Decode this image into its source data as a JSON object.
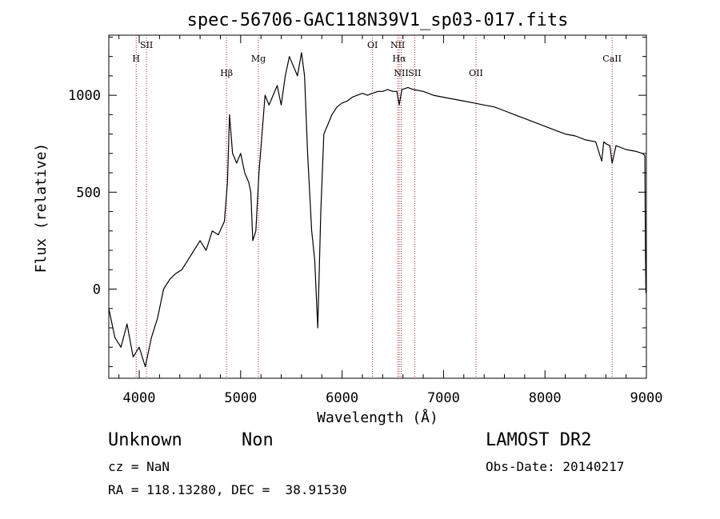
{
  "chart_data": {
    "type": "line",
    "title": "spec-56706-GAC118N39V1_sp03-017.fits",
    "xlabel": "Wavelength (Å)",
    "ylabel": "Flux (relative)",
    "xlim": [
      3700,
      9000
    ],
    "ylim": [
      -460,
      1310
    ],
    "xticks": [
      4000,
      5000,
      6000,
      7000,
      8000,
      9000
    ],
    "yticks": [
      0,
      500,
      1000
    ],
    "tick_labels_x": [
      "4000",
      "5000",
      "6000",
      "7000",
      "8000",
      "9000"
    ],
    "tick_labels_y": [
      "0",
      "500",
      "1000"
    ],
    "grid": false,
    "line_color": "#000000",
    "marker_color": "#b22222",
    "lines": [
      {
        "label": "H",
        "wavelength": 3970,
        "row": 1
      },
      {
        "label": "SII",
        "wavelength": 4072,
        "row": 0
      },
      {
        "label": "Hβ",
        "wavelength": 4861,
        "row": 2
      },
      {
        "label": "Mg",
        "wavelength": 5175,
        "row": 1
      },
      {
        "label": "OI",
        "wavelength": 6300,
        "row": 0
      },
      {
        "label": "NII",
        "wavelength": 6548,
        "row": 0
      },
      {
        "label": "Hα",
        "wavelength": 6563,
        "row": 1
      },
      {
        "label": "NII",
        "wavelength": 6583,
        "row": 2
      },
      {
        "label": "SII",
        "wavelength": 6716,
        "row": 2
      },
      {
        "label": "OII",
        "wavelength": 7320,
        "row": 2
      },
      {
        "label": "CaII",
        "wavelength": 8662,
        "row": 1
      }
    ],
    "series": [
      {
        "x": [
          3700,
          3760,
          3820,
          3880,
          3940,
          4000,
          4060,
          4120,
          4180,
          4240,
          4300,
          4360,
          4420,
          4480,
          4540,
          4600,
          4660,
          4720,
          4780,
          4840,
          4870,
          4890,
          4920,
          4960,
          5000,
          5040,
          5080,
          5100,
          5120,
          5150,
          5180,
          5210,
          5240,
          5280,
          5320,
          5360,
          5400,
          5440,
          5480,
          5520,
          5560,
          5600,
          5630,
          5660,
          5700,
          5730,
          5760,
          5790,
          5820,
          5860,
          5900,
          5950,
          6000,
          6050,
          6100,
          6150,
          6200,
          6250,
          6300,
          6350,
          6400,
          6450,
          6500,
          6540,
          6563,
          6590,
          6650,
          6700,
          6800,
          6900,
          7000,
          7100,
          7200,
          7300,
          7400,
          7500,
          7600,
          7700,
          7800,
          7900,
          8000,
          8100,
          8200,
          8300,
          8400,
          8500,
          8560,
          8580,
          8600,
          8640,
          8662,
          8700,
          8800,
          8900,
          8960,
          8985,
          8990,
          8995
        ],
        "y": [
          -100,
          -250,
          -300,
          -180,
          -350,
          -300,
          -400,
          -250,
          -150,
          0,
          50,
          80,
          100,
          150,
          200,
          250,
          200,
          300,
          280,
          350,
          550,
          900,
          700,
          650,
          700,
          600,
          550,
          500,
          250,
          300,
          600,
          800,
          1000,
          950,
          1000,
          1050,
          950,
          1100,
          1200,
          1150,
          1100,
          1220,
          1100,
          700,
          300,
          150,
          -200,
          400,
          800,
          850,
          900,
          940,
          960,
          970,
          990,
          1000,
          1010,
          1000,
          1010,
          1020,
          1020,
          1030,
          1020,
          1020,
          950,
          1030,
          1040,
          1030,
          1020,
          1000,
          990,
          980,
          970,
          960,
          950,
          940,
          920,
          900,
          880,
          860,
          840,
          820,
          800,
          790,
          770,
          760,
          660,
          760,
          750,
          740,
          650,
          740,
          720,
          710,
          700,
          690,
          260,
          -20
        ]
      }
    ]
  },
  "info": {
    "class_label": "Unknown",
    "subclass_label": "Non",
    "survey": "LAMOST DR2",
    "cz": "cz = NaN",
    "obs_date": "Obs-Date: 20140217",
    "coords": "RA = 118.13280, DEC =  38.91530"
  }
}
